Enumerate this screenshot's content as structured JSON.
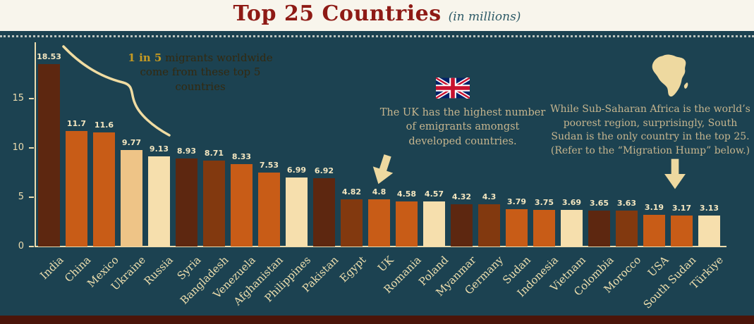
{
  "header": {
    "title": "Top 25 Countries",
    "subtitle": "(in millions)"
  },
  "chart_data": {
    "type": "bar",
    "title": "Top 25 Countries (in millions)",
    "unit": "millions",
    "categories": [
      "India",
      "China",
      "Mexico",
      "Ukraine",
      "Russia",
      "Syria",
      "Bangladesh",
      "Venezuela",
      "Afghanistan",
      "Philippines",
      "Pakistan",
      "Egypt",
      "UK",
      "Romania",
      "Poland",
      "Myanmar",
      "Germany",
      "Sudan",
      "Indonesia",
      "Vietnam",
      "Colombia",
      "Morocco",
      "USA",
      "South Sudan",
      "Türkiye"
    ],
    "values": [
      18.53,
      11.7,
      11.6,
      9.77,
      9.13,
      8.93,
      8.71,
      8.33,
      7.53,
      6.99,
      6.92,
      4.82,
      4.8,
      4.58,
      4.57,
      4.32,
      4.3,
      3.79,
      3.75,
      3.69,
      3.65,
      3.63,
      3.19,
      3.17,
      3.13
    ],
    "value_labels": [
      "18.53",
      "11.7",
      "11.6",
      "9.77",
      "9.13",
      "8.93",
      "8.71",
      "8.33",
      "7.53",
      "6.99",
      "6.92",
      "4.82",
      "4.8",
      "4.58",
      "4.57",
      "4.32",
      "4.3",
      "3.79",
      "3.75",
      "3.69",
      "3.65",
      "3.63",
      "3.19",
      "3.17",
      "3.13"
    ],
    "bar_colors": [
      "#5d2710",
      "#c85c17",
      "#c85c17",
      "#eec487",
      "#f6dfad",
      "#5d2710",
      "#82390f",
      "#c85c17",
      "#c85c17",
      "#f6dfad",
      "#5d2710",
      "#82390f",
      "#c85c17",
      "#c85c17",
      "#f6dfad",
      "#5d2710",
      "#82390f",
      "#c85c17",
      "#c85c17",
      "#f6dfad",
      "#5d2710",
      "#82390f",
      "#c85c17",
      "#c85c17",
      "#f6dfad"
    ],
    "yticks": [
      0,
      5,
      10,
      15
    ],
    "ylim": [
      0,
      20
    ],
    "xlabel": "",
    "ylabel": "",
    "grid": false,
    "legend": false
  },
  "annotations": {
    "top5": {
      "highlight": "1 in 5",
      "rest": " migrants worldwide come from these top 5 countries"
    },
    "uk": {
      "text": "The UK has the highest number of emigrants amongst developed countries.",
      "icon": "uk-flag-icon"
    },
    "africa": {
      "text": "While Sub-Saharan Africa is the world’s poorest region, surprisingly, South Sudan is the only country in the top 25. (Refer to the “Migration Hump” below.)",
      "icon": "africa-map-icon"
    }
  },
  "colors": {
    "background": "#1c4251",
    "title_band": "#f8f5ec",
    "title_text": "#8e1a15",
    "subtitle_text": "#2d5a67",
    "axis": "#ecdcae",
    "bar_value_label": "#f3e6c0",
    "country_label": "#eedfae",
    "annotation_muted": "#c6b58e",
    "annotation_dark": "#33290f",
    "annotation_gold": "#c59a22",
    "accent_cream": "#eed9a0",
    "footer_strip": "#4b150a"
  }
}
